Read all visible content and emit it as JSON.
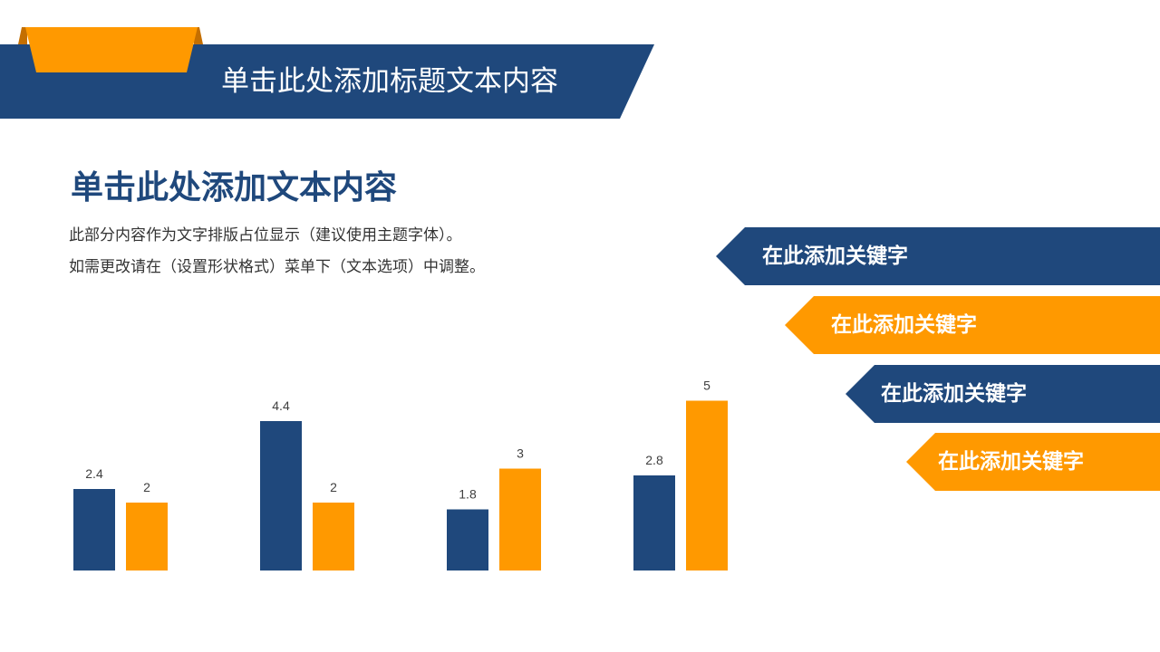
{
  "header": {
    "title": "单击此处添加标题文本内容"
  },
  "section": {
    "heading": "单击此处添加文本内容",
    "lines": [
      "此部分内容作为文字排版占位显示（建议使用主题字体）。",
      "如需更改请在（设置形状格式）菜单下（文本选项）中调整。"
    ]
  },
  "keywords": [
    {
      "label": "在此添加关键字",
      "color": "#1f487c"
    },
    {
      "label": "在此添加关键字",
      "color": "#ff9900"
    },
    {
      "label": "在此添加关键字",
      "color": "#1f487c"
    },
    {
      "label": "在此添加关键字",
      "color": "#ff9900"
    }
  ],
  "colors": {
    "navy": "#1f487c",
    "orange": "#ff9900"
  },
  "chart_data": {
    "type": "bar",
    "categories": [
      "",
      "",
      "",
      ""
    ],
    "series": [
      {
        "values": [
          2.4,
          4.4,
          1.8,
          2.8
        ],
        "color": "#1f487c"
      },
      {
        "values": [
          2,
          2,
          3,
          5
        ],
        "color": "#ff9900"
      }
    ],
    "ylim": [
      0,
      6
    ],
    "grid": false,
    "legend": "none",
    "data_labels": true
  }
}
